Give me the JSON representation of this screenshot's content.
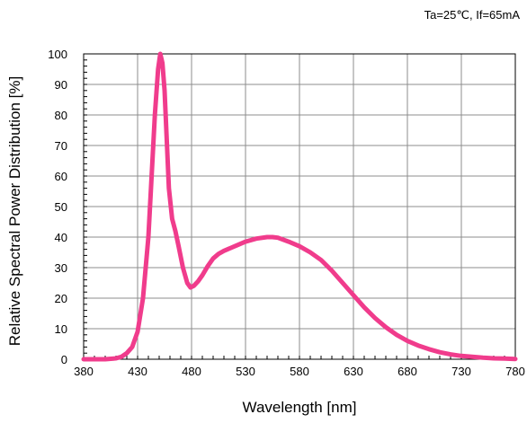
{
  "chart_data": {
    "type": "line",
    "title": "",
    "annotation": "Ta=25℃, If=65mA",
    "xlabel": "Wavelength [nm]",
    "ylabel": "Relative Spectral Power Distribution [%]",
    "xlim": [
      380,
      780
    ],
    "ylim": [
      0,
      100
    ],
    "x_ticks": [
      380,
      430,
      480,
      530,
      580,
      630,
      680,
      730,
      780
    ],
    "y_ticks": [
      0,
      10,
      20,
      30,
      40,
      50,
      60,
      70,
      80,
      90,
      100
    ],
    "grid": true,
    "series": [
      {
        "color": "#f03c8c",
        "x": [
          380,
          400,
          410,
          415,
          420,
          425,
          430,
          435,
          440,
          443,
          446,
          449,
          451,
          453,
          455,
          457,
          459,
          462,
          465,
          468,
          472,
          476,
          479,
          482,
          486,
          490,
          495,
          500,
          505,
          510,
          520,
          530,
          540,
          550,
          555,
          560,
          570,
          580,
          590,
          600,
          610,
          620,
          630,
          640,
          650,
          660,
          670,
          680,
          690,
          700,
          710,
          720,
          730,
          740,
          750,
          760,
          770,
          780
        ],
        "y": [
          0,
          0,
          0.3,
          0.8,
          2,
          4,
          9,
          20,
          40,
          60,
          80,
          95,
          100,
          97,
          88,
          72,
          56,
          46,
          42,
          37,
          30,
          25,
          23.5,
          24,
          25.5,
          27.5,
          30.5,
          33,
          34.5,
          35.5,
          37,
          38.5,
          39.5,
          40,
          40,
          39.8,
          38.5,
          37,
          35,
          32.5,
          29,
          25,
          21,
          17,
          13.5,
          10.5,
          8,
          6,
          4.5,
          3.3,
          2.3,
          1.6,
          1.1,
          0.8,
          0.5,
          0.3,
          0.2,
          0.1
        ]
      }
    ]
  }
}
